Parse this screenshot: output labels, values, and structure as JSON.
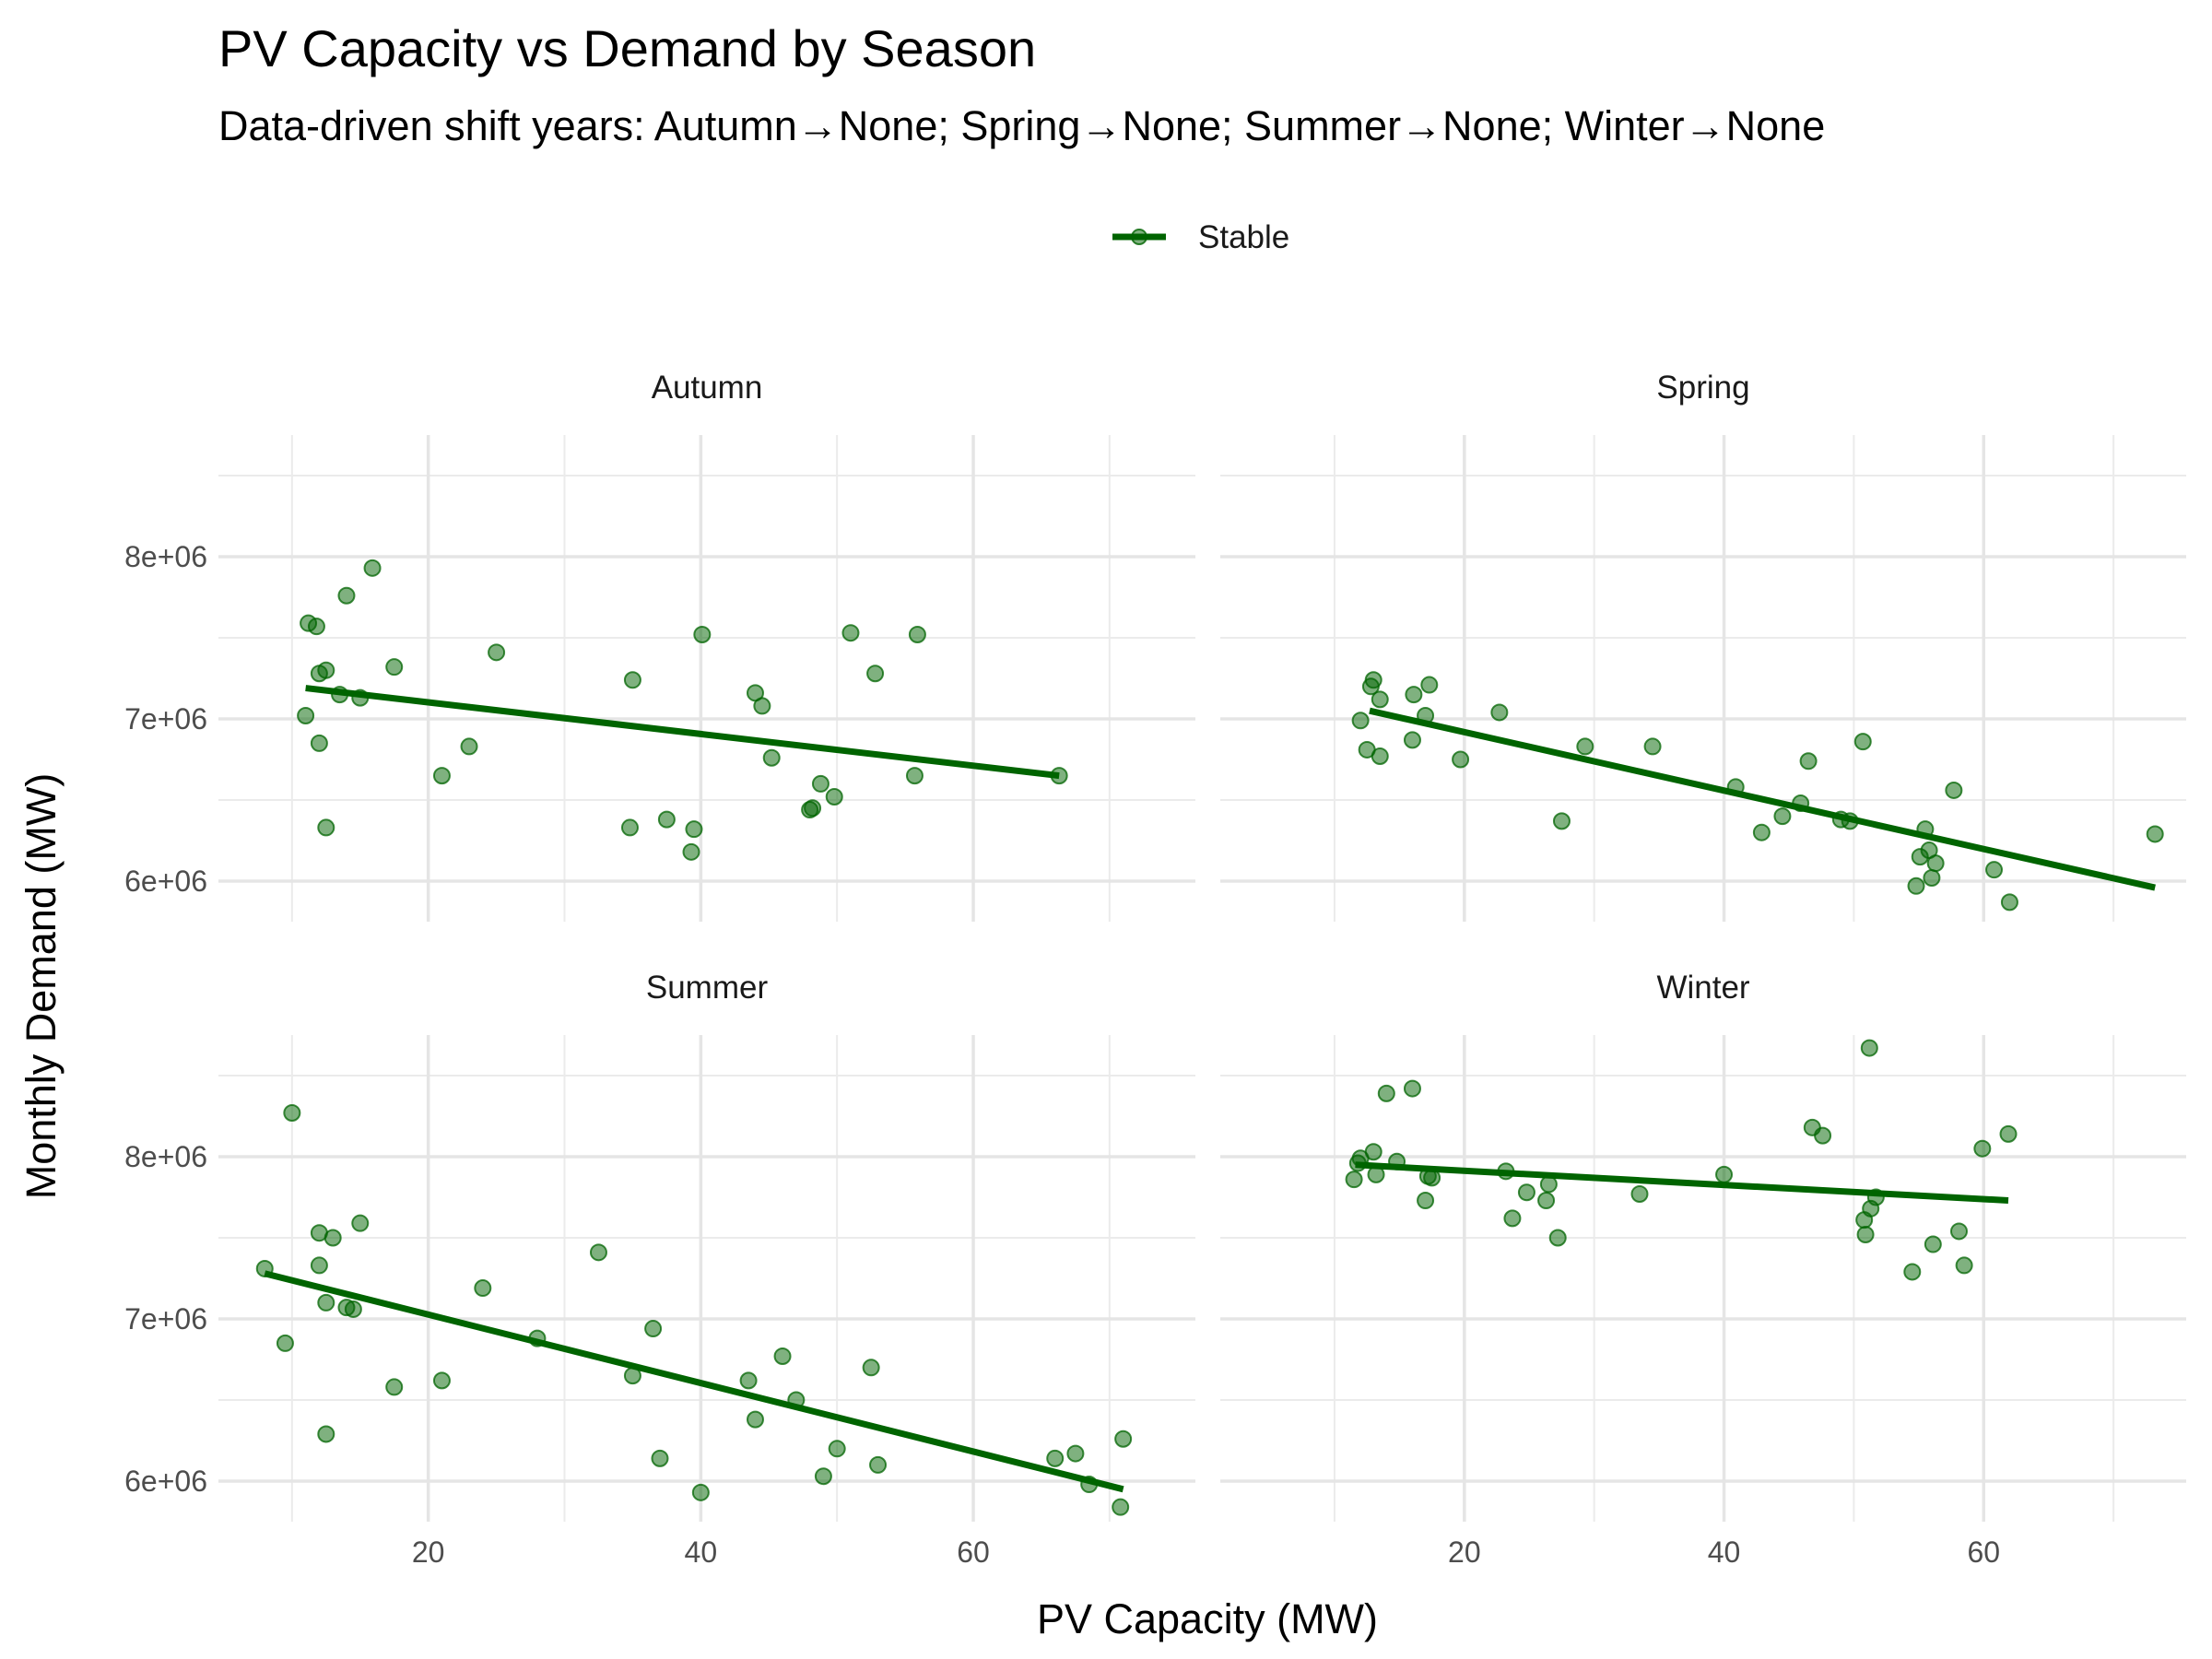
{
  "chart_data": {
    "type": "scatter",
    "title": "PV Capacity vs Demand by Season",
    "subtitle": "Data-driven shift years: Autumn→None; Spring→None; Summer→None; Winter→None",
    "xlabel": "PV Capacity (MW)",
    "ylabel": "Monthly Demand (MW)",
    "legend": {
      "position": "top",
      "entries": [
        {
          "label": "Stable",
          "color": "#006400"
        }
      ]
    },
    "grid": true,
    "x_ticks": [
      20,
      40,
      60
    ],
    "y_ticks": [
      6000000,
      7000000,
      8000000
    ],
    "y_tick_labels": [
      "6e+06",
      "7e+06",
      "8e+06"
    ],
    "point_color": "#006400",
    "line_color": "#006400",
    "panels": [
      {
        "name": "Autumn",
        "xlim": [
          4.6,
          76.3
        ],
        "ylim": [
          5750000,
          8750000
        ],
        "trend": [
          [
            11.0,
            7190000
          ],
          [
            66.3,
            6650000
          ]
        ],
        "points": [
          [
            15.9,
            7930000
          ],
          [
            14.0,
            7760000
          ],
          [
            11.2,
            7590000
          ],
          [
            11.8,
            7570000
          ],
          [
            12.5,
            7300000
          ],
          [
            12.0,
            7280000
          ],
          [
            17.5,
            7320000
          ],
          [
            13.5,
            7150000
          ],
          [
            15.0,
            7130000
          ],
          [
            11.0,
            7020000
          ],
          [
            12.0,
            6850000
          ],
          [
            12.5,
            6330000
          ],
          [
            25.0,
            7410000
          ],
          [
            23.0,
            6830000
          ],
          [
            21.0,
            6650000
          ],
          [
            35.0,
            7240000
          ],
          [
            34.8,
            6330000
          ],
          [
            37.5,
            6380000
          ],
          [
            39.5,
            6320000
          ],
          [
            39.3,
            6180000
          ],
          [
            40.1,
            7520000
          ],
          [
            44.0,
            7160000
          ],
          [
            44.5,
            7080000
          ],
          [
            45.2,
            6760000
          ],
          [
            48.8,
            6600000
          ],
          [
            49.8,
            6520000
          ],
          [
            48.2,
            6450000
          ],
          [
            48.0,
            6440000
          ],
          [
            51.0,
            7530000
          ],
          [
            52.8,
            7280000
          ],
          [
            55.9,
            7520000
          ],
          [
            55.7,
            6650000
          ],
          [
            66.3,
            6650000
          ]
        ]
      },
      {
        "name": "Spring",
        "xlim": [
          1.2,
          75.6
        ],
        "ylim": [
          5750000,
          8750000
        ],
        "trend": [
          [
            12.7,
            7050000
          ],
          [
            73.2,
            5960000
          ]
        ],
        "points": [
          [
            13.0,
            7240000
          ],
          [
            12.8,
            7200000
          ],
          [
            13.5,
            7120000
          ],
          [
            12.0,
            6990000
          ],
          [
            12.5,
            6810000
          ],
          [
            13.5,
            6770000
          ],
          [
            16.1,
            7150000
          ],
          [
            17.3,
            7210000
          ],
          [
            17.0,
            7020000
          ],
          [
            16.0,
            6870000
          ],
          [
            19.7,
            6750000
          ],
          [
            22.7,
            7040000
          ],
          [
            27.5,
            6370000
          ],
          [
            29.3,
            6830000
          ],
          [
            34.5,
            6830000
          ],
          [
            40.9,
            6580000
          ],
          [
            42.9,
            6300000
          ],
          [
            44.5,
            6400000
          ],
          [
            45.9,
            6480000
          ],
          [
            46.5,
            6740000
          ],
          [
            49.0,
            6380000
          ],
          [
            49.7,
            6370000
          ],
          [
            50.7,
            6860000
          ],
          [
            55.5,
            6320000
          ],
          [
            55.1,
            6150000
          ],
          [
            55.8,
            6190000
          ],
          [
            56.3,
            6110000
          ],
          [
            56.0,
            6020000
          ],
          [
            54.8,
            5970000
          ],
          [
            57.7,
            6560000
          ],
          [
            60.8,
            6070000
          ],
          [
            62.0,
            5870000
          ],
          [
            73.2,
            6290000
          ]
        ]
      },
      {
        "name": "Summer",
        "xlim": [
          4.6,
          76.3
        ],
        "ylim": [
          5750000,
          8750000
        ],
        "trend": [
          [
            8.0,
            7280000
          ],
          [
            71.0,
            5950000
          ]
        ],
        "points": [
          [
            10.0,
            8270000
          ],
          [
            9.5,
            6850000
          ],
          [
            8.0,
            7310000
          ],
          [
            12.0,
            7530000
          ],
          [
            12.0,
            7330000
          ],
          [
            13.0,
            7500000
          ],
          [
            15.0,
            7590000
          ],
          [
            12.5,
            7100000
          ],
          [
            14.0,
            7070000
          ],
          [
            14.5,
            7060000
          ],
          [
            12.5,
            6290000
          ],
          [
            17.5,
            6580000
          ],
          [
            21.0,
            6620000
          ],
          [
            24.0,
            7190000
          ],
          [
            28.0,
            6880000
          ],
          [
            32.5,
            7410000
          ],
          [
            35.0,
            6650000
          ],
          [
            36.5,
            6940000
          ],
          [
            37.0,
            6140000
          ],
          [
            40.0,
            5930000
          ],
          [
            43.5,
            6620000
          ],
          [
            44.0,
            6380000
          ],
          [
            46.0,
            6770000
          ],
          [
            47.0,
            6500000
          ],
          [
            49.0,
            6030000
          ],
          [
            50.0,
            6200000
          ],
          [
            52.5,
            6700000
          ],
          [
            53.0,
            6100000
          ],
          [
            66.0,
            6140000
          ],
          [
            67.5,
            6170000
          ],
          [
            68.5,
            5980000
          ],
          [
            71.0,
            6260000
          ],
          [
            70.8,
            5840000
          ]
        ]
      },
      {
        "name": "Winter",
        "xlim": [
          1.2,
          75.6
        ],
        "ylim": [
          5750000,
          8750000
        ],
        "trend": [
          [
            11.6,
            7950000
          ],
          [
            61.9,
            7730000
          ]
        ],
        "points": [
          [
            12.0,
            7990000
          ],
          [
            11.8,
            7960000
          ],
          [
            11.5,
            7860000
          ],
          [
            13.0,
            8030000
          ],
          [
            13.2,
            7890000
          ],
          [
            14.0,
            8390000
          ],
          [
            14.8,
            7970000
          ],
          [
            16.0,
            8420000
          ],
          [
            17.2,
            7880000
          ],
          [
            17.5,
            7870000
          ],
          [
            17.0,
            7730000
          ],
          [
            23.2,
            7910000
          ],
          [
            23.7,
            7620000
          ],
          [
            24.8,
            7780000
          ],
          [
            26.3,
            7730000
          ],
          [
            26.5,
            7830000
          ],
          [
            27.2,
            7500000
          ],
          [
            33.5,
            7770000
          ],
          [
            40.0,
            7890000
          ],
          [
            46.8,
            8180000
          ],
          [
            47.6,
            8130000
          ],
          [
            50.8,
            7610000
          ],
          [
            50.9,
            7520000
          ],
          [
            51.3,
            7680000
          ],
          [
            51.7,
            7750000
          ],
          [
            51.2,
            8670000
          ],
          [
            54.5,
            7290000
          ],
          [
            56.1,
            7460000
          ],
          [
            58.1,
            7540000
          ],
          [
            58.5,
            7330000
          ],
          [
            59.9,
            8050000
          ],
          [
            61.9,
            8140000
          ]
        ]
      }
    ]
  }
}
